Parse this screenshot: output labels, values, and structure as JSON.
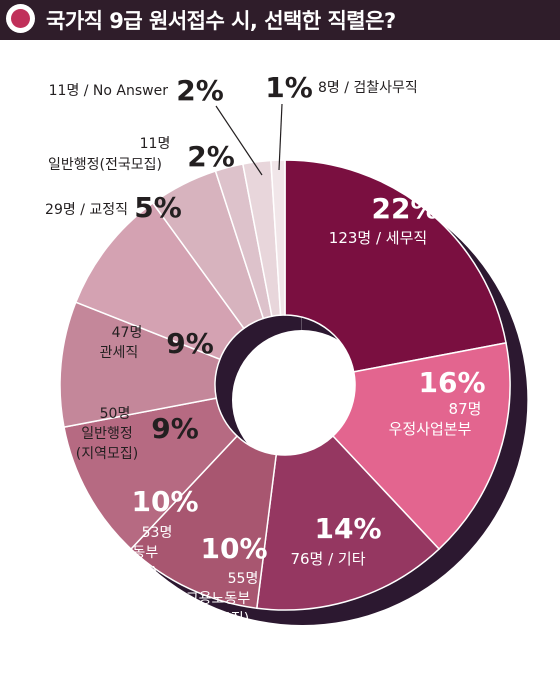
{
  "title": "국가직 9급 원서접수 시, 선택한 직렬은?",
  "colors": {
    "title_bg": "#2f1d2a",
    "title_icon": "#c0305a",
    "shadow": "#2c1830"
  },
  "chart_data": {
    "type": "pie",
    "title": "국가직 9급 원서접수 시, 선택한 직렬은?",
    "slices": [
      {
        "name": "세무직",
        "count": "123명",
        "percent": 22,
        "label": "22%",
        "color": "#7a0f40"
      },
      {
        "name": "우정사업본부",
        "count": "87명",
        "percent": 16,
        "label": "16%",
        "color": "#e3658f"
      },
      {
        "name": "기타",
        "count": "76명",
        "percent": 14,
        "label": "14%",
        "color": "#953761"
      },
      {
        "name": "고용노동부(지역모집)",
        "count": "55명",
        "percent": 10,
        "label": "10%",
        "color": "#a85670"
      },
      {
        "name": "고용노동부(전국모집)",
        "count": "53명",
        "percent": 10,
        "label": "10%",
        "color": "#b66a82"
      },
      {
        "name": "일반행정(지역모집)",
        "count": "50명",
        "percent": 9,
        "label": "9%",
        "color": "#c4879a"
      },
      {
        "name": "관세직",
        "count": "47명",
        "percent": 9,
        "label": "9%",
        "color": "#d4a2b2"
      },
      {
        "name": "교정직",
        "count": "29명",
        "percent": 5,
        "label": "5%",
        "color": "#d7b3be"
      },
      {
        "name": "일반행정(전국모집)",
        "count": "11명",
        "percent": 2,
        "label": "2%",
        "color": "#ddc2cb"
      },
      {
        "name": "No Answer",
        "count": "11명",
        "percent": 2,
        "label": "2%",
        "color": "#e8d6db"
      },
      {
        "name": "검찰사무직",
        "count": "8명",
        "percent": 1,
        "label": "1%",
        "color": "#f1e6e9"
      }
    ],
    "labels": {
      "s0": {
        "pct": "22%",
        "line1": "123명 / 세무직"
      },
      "s1": {
        "pct": "16%",
        "line1": "87명",
        "line2": "우정사업본부"
      },
      "s2": {
        "pct": "14%",
        "line1": "76명 / 기타"
      },
      "s3": {
        "pct": "10%",
        "line1": "55명",
        "line2": "고용노동부",
        "line3": "(지역모집)"
      },
      "s4": {
        "pct": "10%",
        "line1": "53명",
        "line2": "고용노동부",
        "line3": "(전국모집)"
      },
      "s5": {
        "pct": "9%",
        "line1": "50명",
        "line2": "일반행정",
        "line3": "(지역모집)"
      },
      "s6": {
        "pct": "9%",
        "line1": "47명",
        "line2": "관세직"
      },
      "s7": {
        "pct": "5%",
        "line1": "29명 / 교정직"
      },
      "s8": {
        "pct": "2%",
        "line1": "11명",
        "line2": "일반행정(전국모집)"
      },
      "s9": {
        "pct": "2%",
        "line1": "11명 / No Answer"
      },
      "s10": {
        "pct": "1%",
        "line1": "8명 / 검찰사무직"
      }
    }
  }
}
